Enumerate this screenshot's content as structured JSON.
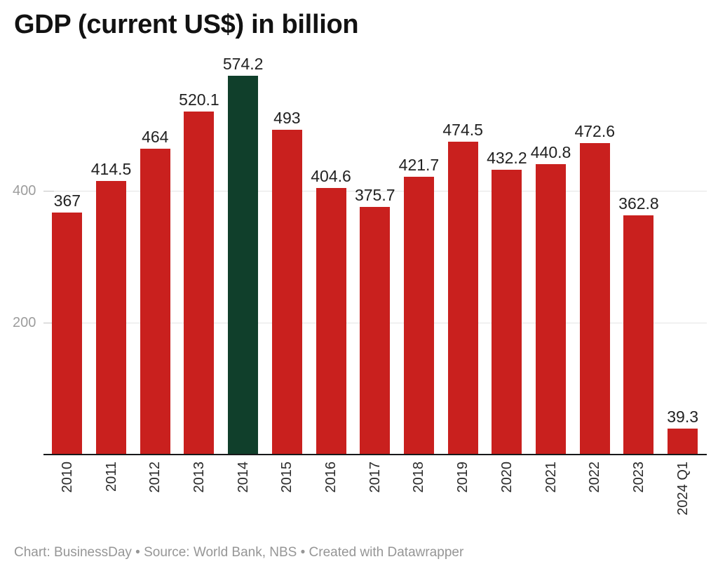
{
  "title": "GDP (current US$) in billion",
  "footer": {
    "text": "Chart: BusinessDay • Source: World Bank, NBS • Created with Datawrapper"
  },
  "colors": {
    "bar": "#c9201e",
    "highlight": "#103f2b",
    "gridline": "#e4e4e4",
    "tick": "#c2c2c2",
    "baseline": "#18191a",
    "y_label": "#9d9d9d",
    "value_label": "#222222",
    "x_label": "#2b2b2b",
    "footer_text": "#969696",
    "background": "#ffffff"
  },
  "chart_data": {
    "type": "bar",
    "title": "GDP (current US$) in billion",
    "xlabel": "",
    "ylabel": "",
    "categories": [
      "2010",
      "2011",
      "2012",
      "2013",
      "2014",
      "2015",
      "2016",
      "2017",
      "2018",
      "2019",
      "2020",
      "2021",
      "2022",
      "2023",
      "2024 Q1"
    ],
    "values": [
      367,
      414.5,
      464,
      520.1,
      574.2,
      493,
      404.6,
      375.7,
      421.7,
      474.5,
      432.2,
      440.8,
      472.6,
      362.8,
      39.3
    ],
    "value_labels": [
      "367",
      "414.5",
      "464",
      "520.1",
      "574.2",
      "493",
      "404.6",
      "375.7",
      "421.7",
      "474.5",
      "432.2",
      "440.8",
      "472.6",
      "362.8",
      "39.3"
    ],
    "highlighted_category": "2014",
    "yticks": [
      200,
      400
    ],
    "ytick_labels": [
      "200",
      "400"
    ],
    "ylim": [
      0,
      600
    ],
    "grid": "horizontal",
    "legend": "none",
    "source": "Chart: BusinessDay • Source: World Bank, NBS • Created with Datawrapper"
  }
}
